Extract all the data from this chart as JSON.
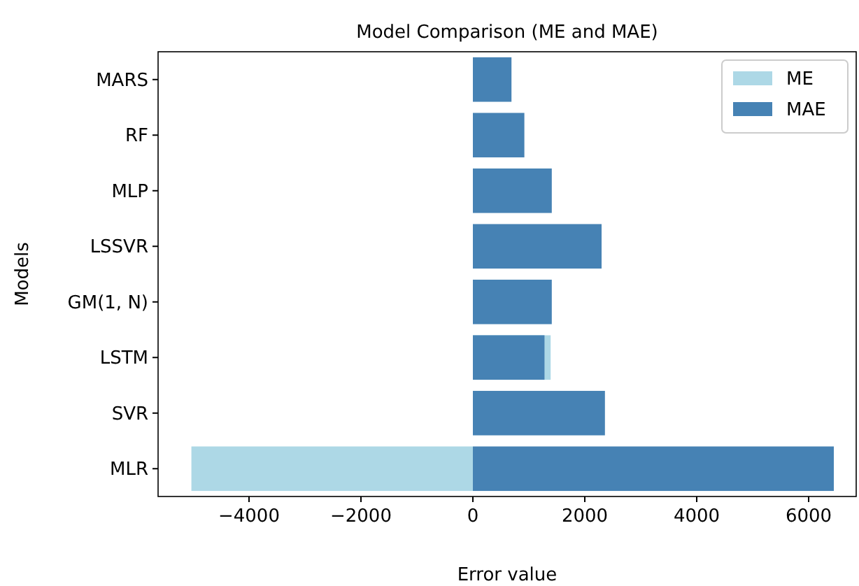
{
  "chart_data": {
    "type": "bar",
    "orientation": "horizontal",
    "title": "Model Comparison (ME and MAE)",
    "xlabel": "Error value",
    "ylabel": "Models",
    "categories": [
      "MARS",
      "RF",
      "MLP",
      "LSSVR",
      "GM(1, N)",
      "LSTM",
      "SVR",
      "MLR"
    ],
    "series": [
      {
        "name": "ME",
        "color": "#add8e6",
        "values": [
          null,
          null,
          null,
          null,
          null,
          1390,
          null,
          -5030
        ]
      },
      {
        "name": "MAE",
        "color": "#4682b4",
        "values": [
          690,
          920,
          1410,
          2300,
          1410,
          1280,
          2360,
          6450
        ]
      }
    ],
    "xlim": [
      -5625,
      6850
    ],
    "xticks": [
      {
        "value": -4000,
        "label": "−4000"
      },
      {
        "value": -2000,
        "label": "−2000"
      },
      0,
      2000,
      4000,
      6000
    ],
    "legend": "top right",
    "grid": false
  }
}
